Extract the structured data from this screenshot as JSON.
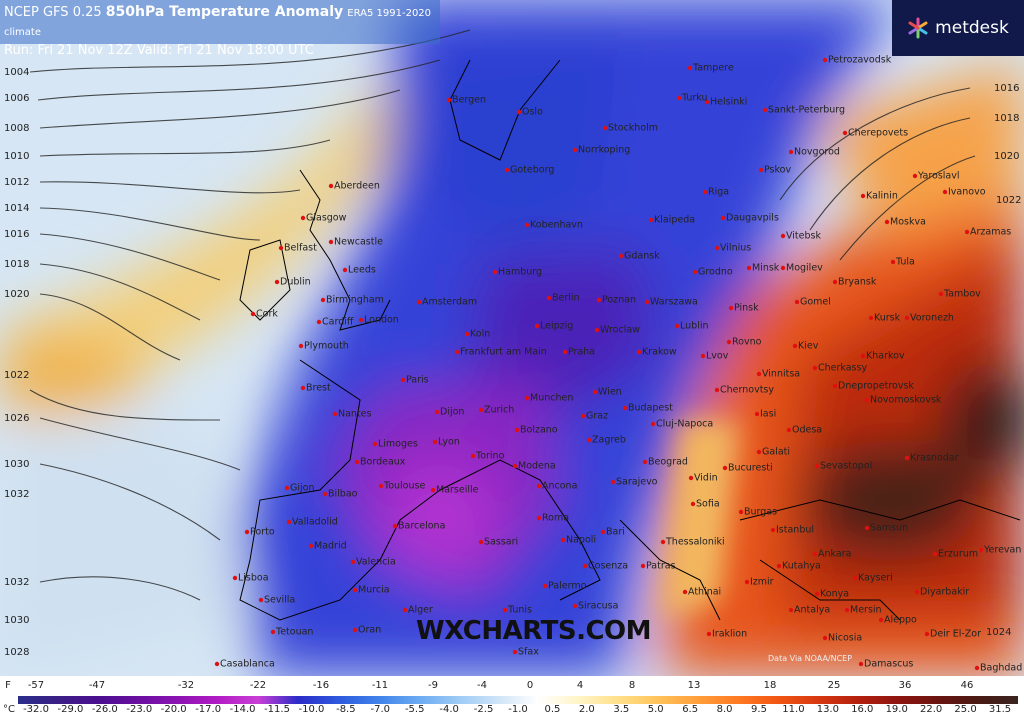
{
  "header": {
    "model": "NCEP GFS 0.25",
    "parameter": "850hPa Temperature Anomaly",
    "climate": "ERA5 1991-2020 climate",
    "run": "Run: Fri 21 Nov 12Z Valid: Fri 21 Nov 18:00 UTC"
  },
  "logo": "metdesk",
  "watermark": "WXCHARTS.COM",
  "credit": "Data Via NOAA/NCEP",
  "isobars": {
    "left": [
      "1004",
      "1006",
      "1008",
      "1010",
      "1012",
      "1014",
      "1016",
      "1018",
      "1020",
      "1022",
      "1026",
      "1030",
      "1032",
      "1032",
      "1030",
      "1028"
    ],
    "right": [
      "1016",
      "1018",
      "1020",
      "1022",
      "1024"
    ]
  },
  "cities": [
    "Petrozavodsk",
    "Tampere",
    "Oslo",
    "Bergen",
    "Helsinki",
    "Sankt-Peterburg",
    "Turku",
    "Stockholm",
    "Norrkoping",
    "Cherepovets",
    "Novgorod",
    "Pskov",
    "Aberdeen",
    "Goteborg",
    "Riga",
    "Kalinin",
    "Yaroslavl",
    "Ivanovo",
    "Glasgow",
    "Klaipeda",
    "Daugavpils",
    "Moskva",
    "Arzamas",
    "Vilnius",
    "Vitebsk",
    "Belfast",
    "Newcastle",
    "Kobenhavn",
    "Leeds",
    "Tula",
    "Dublin",
    "Hamburg",
    "Gdansk",
    "Grodno",
    "Minsk",
    "Mogilev",
    "Bryansk",
    "Tambov",
    "Birmingham",
    "Amsterdam",
    "Berlin",
    "Poznan",
    "Warszawa",
    "Pinsk",
    "Gomel",
    "Kursk",
    "Voronezh",
    "Cork",
    "Cardiff",
    "London",
    "Lublin",
    "Leipzig",
    "Wroclaw",
    "Rovno",
    "Kiev",
    "Plymouth",
    "Koln",
    "Frankfurt am Main",
    "Praha",
    "Krakow",
    "Lvov",
    "Cherkassy",
    "Kharkov",
    "Vinnitsa",
    "Brest",
    "Paris",
    "Munchen",
    "Wien",
    "Chernovtsy",
    "Dnepropetrovsk",
    "Budapest",
    "Novomoskovsk",
    "Nantes",
    "Dijon",
    "Zurich",
    "Graz",
    "Iasi",
    "Odesa",
    "Cluj-Napoca",
    "Limoges",
    "Lyon",
    "Bolzano",
    "Zagreb",
    "Galati",
    "Krasnodar",
    "Bordeaux",
    "Torino",
    "Modena",
    "Beograd",
    "Bucuresti",
    "Sevastopol",
    "Toulouse",
    "Marseille",
    "Ancona",
    "Sarajevo",
    "Vidin",
    "Gijon",
    "Bilbao",
    "Sofia",
    "Burgas",
    "Valladolid",
    "Barcelona",
    "Roma",
    "Bari",
    "Samsun",
    "Porto",
    "Madrid",
    "Napoli",
    "Istanbul",
    "Thessaloniki",
    "Ankara",
    "Erzurum",
    "Sassari",
    "Yerevan",
    "Valencia",
    "Kutahya",
    "Izmir",
    "Kayseri",
    "Lisboa",
    "Murcia",
    "Cosenza",
    "Patras",
    "Konya",
    "Diyarbakir",
    "Sevilla",
    "Palermo",
    "Siracusa",
    "Athinai",
    "Antalya",
    "Mersin",
    "Aleppo",
    "Tetouan",
    "Alger",
    "Oran",
    "Tunis",
    "Iraklion",
    "Nicosia",
    "Deir El-Zor",
    "Casablanca",
    "Sfax",
    "Damascus",
    "Baghdad"
  ],
  "legend": {
    "f_unit": "F",
    "f_labels": [
      "-57",
      "-47",
      "-32",
      "-22",
      "-16",
      "-11",
      "-9",
      "-4",
      "0",
      "4",
      "8",
      "13",
      "18",
      "25",
      "36",
      "46"
    ],
    "c_unit": "°C",
    "c_labels": [
      "-32.0",
      "-29.0",
      "-26.0",
      "-23.0",
      "-20.0",
      "-17.0",
      "-14.0",
      "-11.5",
      "-10.0",
      "-8.5",
      "-7.0",
      "-5.5",
      "-4.0",
      "-2.5",
      "-1.0",
      "0.5",
      "2.0",
      "3.5",
      "5.0",
      "6.5",
      "8.0",
      "9.5",
      "11.0",
      "13.0",
      "16.0",
      "19.0",
      "22.0",
      "25.0",
      "31.5"
    ]
  }
}
